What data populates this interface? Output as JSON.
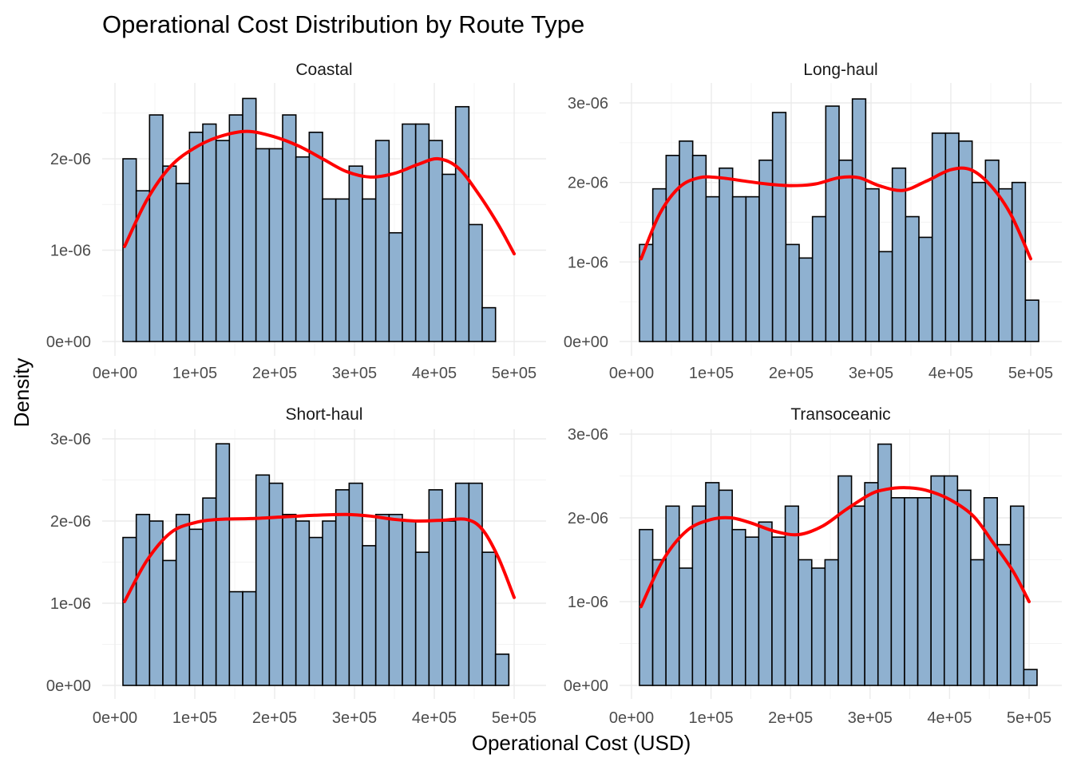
{
  "chart_data": {
    "type": "histogram",
    "title": "Operational Cost Distribution by Route Type",
    "xlabel": "Operational Cost (USD)",
    "ylabel": "Density",
    "xlim": [
      0,
      520000
    ],
    "x_ticks": [
      0,
      100000,
      200000,
      300000,
      400000,
      500000
    ],
    "x_tick_labels": [
      "0e+00",
      "1e+05",
      "2e+05",
      "3e+05",
      "4e+05",
      "5e+05"
    ],
    "bin_start": 10000,
    "bin_width": 16667,
    "colors": {
      "bar_fill": "#8fb1d0",
      "bar_outline": "#000000",
      "density_line": "#ff0000",
      "grid": "#ebebeb"
    },
    "grid": true,
    "panels": [
      {
        "name": "Coastal",
        "ylim": [
          0,
          2.75e-06
        ],
        "y_ticks": [
          0,
          1e-06,
          2e-06
        ],
        "y_tick_labels": [
          "0e+00",
          "1e-06",
          "2e-06"
        ],
        "values": [
          2e-06,
          1.65e-06,
          2.48e-06,
          1.92e-06,
          1.73e-06,
          2.29e-06,
          2.38e-06,
          2.2e-06,
          2.48e-06,
          2.66e-06,
          2.11e-06,
          2.11e-06,
          2.48e-06,
          2.02e-06,
          2.29e-06,
          1.56e-06,
          1.56e-06,
          1.92e-06,
          1.56e-06,
          2.2e-06,
          1.19e-06,
          2.38e-06,
          2.38e-06,
          2.2e-06,
          1.83e-06,
          2.57e-06,
          1.28e-06,
          3.7e-07
        ],
        "density_x": [
          12000,
          40000,
          70000,
          100000,
          130000,
          165000,
          200000,
          230000,
          260000,
          290000,
          320000,
          350000,
          380000,
          405000,
          430000,
          455000,
          480000,
          500000
        ],
        "density_y": [
          1.04e-06,
          1.55e-06,
          1.92e-06,
          2.12e-06,
          2.24e-06,
          2.3e-06,
          2.24e-06,
          2.14e-06,
          2e-06,
          1.86e-06,
          1.8e-06,
          1.84e-06,
          1.94e-06,
          2e-06,
          1.9e-06,
          1.62e-06,
          1.28e-06,
          9.6e-07
        ]
      },
      {
        "name": "Long-haul",
        "ylim": [
          0,
          3.15e-06
        ],
        "y_ticks": [
          0,
          1e-06,
          2e-06,
          3e-06
        ],
        "y_tick_labels": [
          "0e+00",
          "1e-06",
          "2e-06",
          "3e-06"
        ],
        "values": [
          1.22e-06,
          1.92e-06,
          2.34e-06,
          2.52e-06,
          2.34e-06,
          1.82e-06,
          2.18e-06,
          1.82e-06,
          1.82e-06,
          2.28e-06,
          2.88e-06,
          1.22e-06,
          1.05e-06,
          1.57e-06,
          2.96e-06,
          2.28e-06,
          3.05e-06,
          1.92e-06,
          1.13e-06,
          2.18e-06,
          1.57e-06,
          1.31e-06,
          2.62e-06,
          2.62e-06,
          2.52e-06,
          2e-06,
          2.28e-06,
          1.92e-06,
          2e-06,
          5.2e-07
        ],
        "density_x": [
          12000,
          35000,
          60000,
          85000,
          110000,
          140000,
          170000,
          200000,
          230000,
          260000,
          285000,
          310000,
          340000,
          370000,
          400000,
          425000,
          450000,
          475000,
          500000
        ],
        "density_y": [
          1.04e-06,
          1.6e-06,
          1.94e-06,
          2.06e-06,
          2.06e-06,
          2.02e-06,
          1.98e-06,
          1.96e-06,
          1.98e-06,
          2.06e-06,
          2.06e-06,
          1.96e-06,
          1.9e-06,
          2.02e-06,
          2.16e-06,
          2.16e-06,
          1.96e-06,
          1.6e-06,
          1.04e-06
        ]
      },
      {
        "name": "Short-haul",
        "ylim": [
          0,
          3e-06
        ],
        "y_ticks": [
          0,
          1e-06,
          2e-06,
          3e-06
        ],
        "y_tick_labels": [
          "0e+00",
          "1e-06",
          "2e-06",
          "3e-06"
        ],
        "values": [
          1.8e-06,
          2.08e-06,
          2e-06,
          1.52e-06,
          2.08e-06,
          1.9e-06,
          2.28e-06,
          2.94e-06,
          1.14e-06,
          1.14e-06,
          2.56e-06,
          2.46e-06,
          2.08e-06,
          2e-06,
          1.8e-06,
          2e-06,
          2.38e-06,
          2.46e-06,
          1.7e-06,
          2.08e-06,
          2.08e-06,
          2e-06,
          1.62e-06,
          2.38e-06,
          2e-06,
          2.46e-06,
          2.46e-06,
          1.62e-06,
          3.8e-07
        ],
        "density_x": [
          12000,
          40000,
          70000,
          100000,
          130000,
          170000,
          210000,
          250000,
          290000,
          320000,
          350000,
          380000,
          410000,
          440000,
          460000,
          480000,
          500000
        ],
        "density_y": [
          1.02e-06,
          1.52e-06,
          1.86e-06,
          1.98e-06,
          2.02e-06,
          2.03e-06,
          2.05e-06,
          2.07e-06,
          2.08e-06,
          2.06e-06,
          2.02e-06,
          2e-06,
          2.01e-06,
          2.02e-06,
          1.9e-06,
          1.56e-06,
          1.07e-06
        ]
      },
      {
        "name": "Transoceanic",
        "ylim": [
          0,
          3e-06
        ],
        "y_ticks": [
          0,
          1e-06,
          2e-06,
          3e-06
        ],
        "y_tick_labels": [
          "0e+00",
          "1e-06",
          "2e-06",
          "3e-06"
        ],
        "values": [
          1.86e-06,
          1.5e-06,
          2.14e-06,
          1.4e-06,
          2.14e-06,
          2.42e-06,
          2.33e-06,
          1.86e-06,
          1.77e-06,
          1.95e-06,
          1.77e-06,
          2.14e-06,
          1.5e-06,
          1.4e-06,
          1.5e-06,
          2.5e-06,
          2.14e-06,
          2.42e-06,
          2.88e-06,
          2.24e-06,
          2.24e-06,
          2.24e-06,
          2.5e-06,
          2.5e-06,
          2.33e-06,
          1.5e-06,
          2.24e-06,
          1.68e-06,
          2.14e-06,
          1.9e-07
        ],
        "density_x": [
          12000,
          40000,
          70000,
          100000,
          125000,
          150000,
          180000,
          210000,
          240000,
          270000,
          300000,
          320000,
          345000,
          370000,
          400000,
          430000,
          455000,
          480000,
          500000
        ],
        "density_y": [
          9.4e-07,
          1.5e-06,
          1.85e-06,
          1.98e-06,
          2e-06,
          1.94e-06,
          1.84e-06,
          1.8e-06,
          1.9e-06,
          2.1e-06,
          2.28e-06,
          2.34e-06,
          2.36e-06,
          2.33e-06,
          2.22e-06,
          2.02e-06,
          1.7e-06,
          1.36e-06,
          1e-06
        ]
      }
    ]
  }
}
